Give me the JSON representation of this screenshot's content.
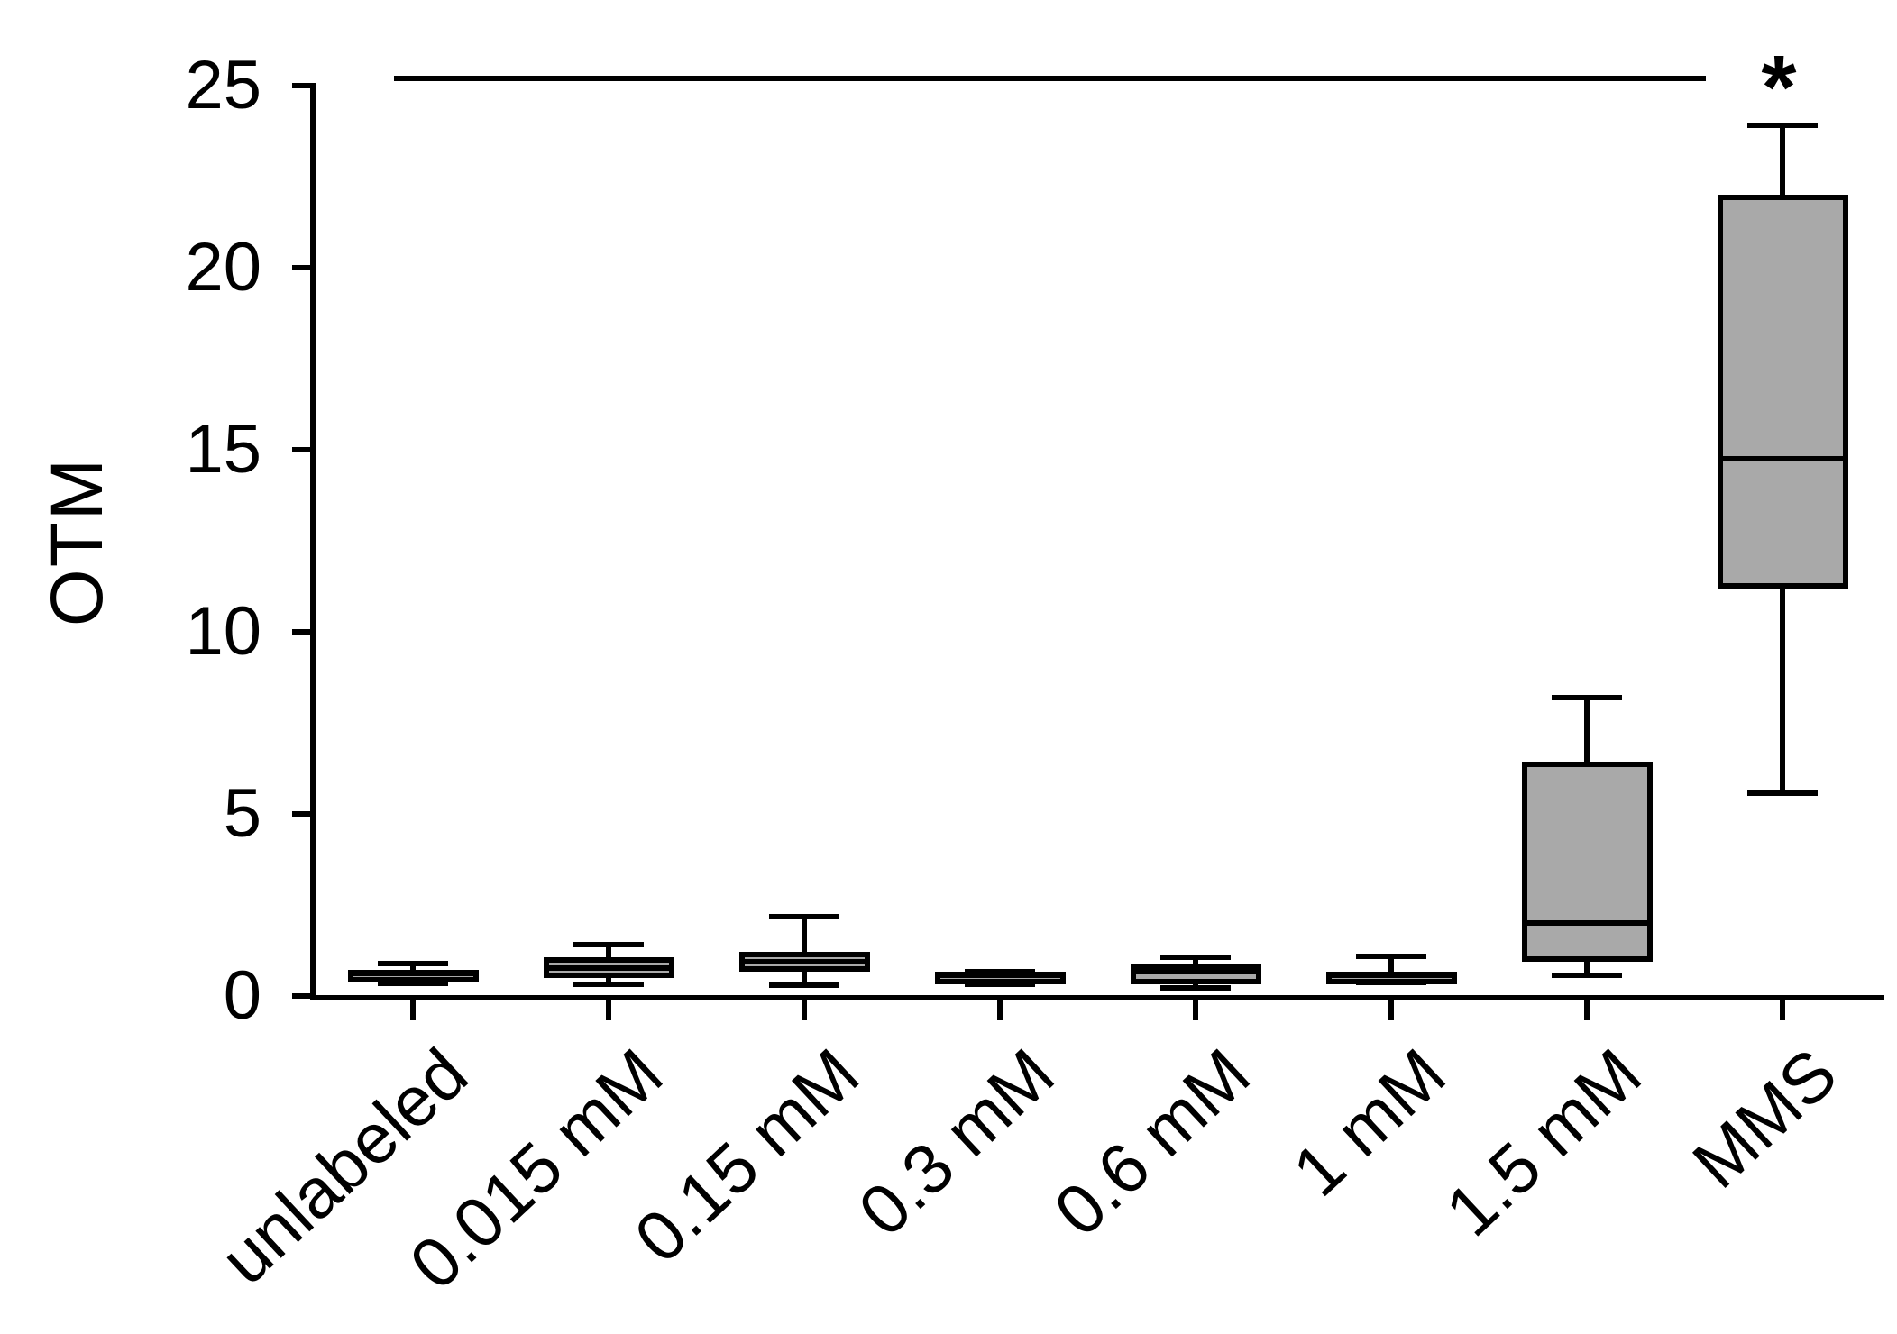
{
  "chart_data": {
    "type": "box",
    "title": "",
    "xlabel": "",
    "ylabel": "OTM",
    "ylim": [
      0,
      25
    ],
    "y_ticks": [
      0,
      5,
      10,
      15,
      20,
      25
    ],
    "grid": false,
    "legend": null,
    "categories": [
      "unlabeled",
      "0.015 mM",
      "0.15 mM",
      "0.3 mM",
      "0.6 mM",
      "1 mM",
      "1.5 mM",
      "MMS"
    ],
    "groups": [
      {
        "label": "unlabeled",
        "whisker_low": 0.35,
        "q1": 0.52,
        "median": 0.62,
        "q3": 0.72,
        "whisker_high": 0.88
      },
      {
        "label": "0.015 mM",
        "whisker_low": 0.32,
        "q1": 0.5,
        "median": 0.77,
        "q3": 1.06,
        "whisker_high": 1.41
      },
      {
        "label": "0.15 mM",
        "whisker_low": 0.3,
        "q1": 0.67,
        "median": 0.95,
        "q3": 1.21,
        "whisker_high": 2.18
      },
      {
        "label": "0.3 mM",
        "whisker_low": 0.32,
        "q1": 0.45,
        "median": 0.56,
        "q3": 0.66,
        "whisker_high": 0.66
      },
      {
        "label": "0.6 mM",
        "whisker_low": 0.22,
        "q1": 0.32,
        "median": 0.67,
        "q3": 0.87,
        "whisker_high": 1.06
      },
      {
        "label": "1 mM",
        "whisker_low": 0.37,
        "q1": 0.5,
        "median": 0.58,
        "q3": 0.67,
        "whisker_high": 1.09
      },
      {
        "label": "1.5 mM",
        "whisker_low": 0.57,
        "q1": 0.94,
        "median": 2.0,
        "q3": 6.44,
        "whisker_high": 8.19
      },
      {
        "label": "MMS",
        "whisker_low": 5.57,
        "q1": 11.2,
        "median": 14.75,
        "q3": 22.0,
        "whisker_high": 23.9
      }
    ],
    "annotations": {
      "asterisk": {
        "text": "*",
        "group": "MMS"
      },
      "significance_line": {
        "y_value": 25.2,
        "x_start_frac": 0.05,
        "x_end_frac": 0.886
      }
    },
    "style": {
      "box_fill": "#a9a9a9",
      "line_color": "#000000",
      "background": "#ffffff"
    }
  }
}
